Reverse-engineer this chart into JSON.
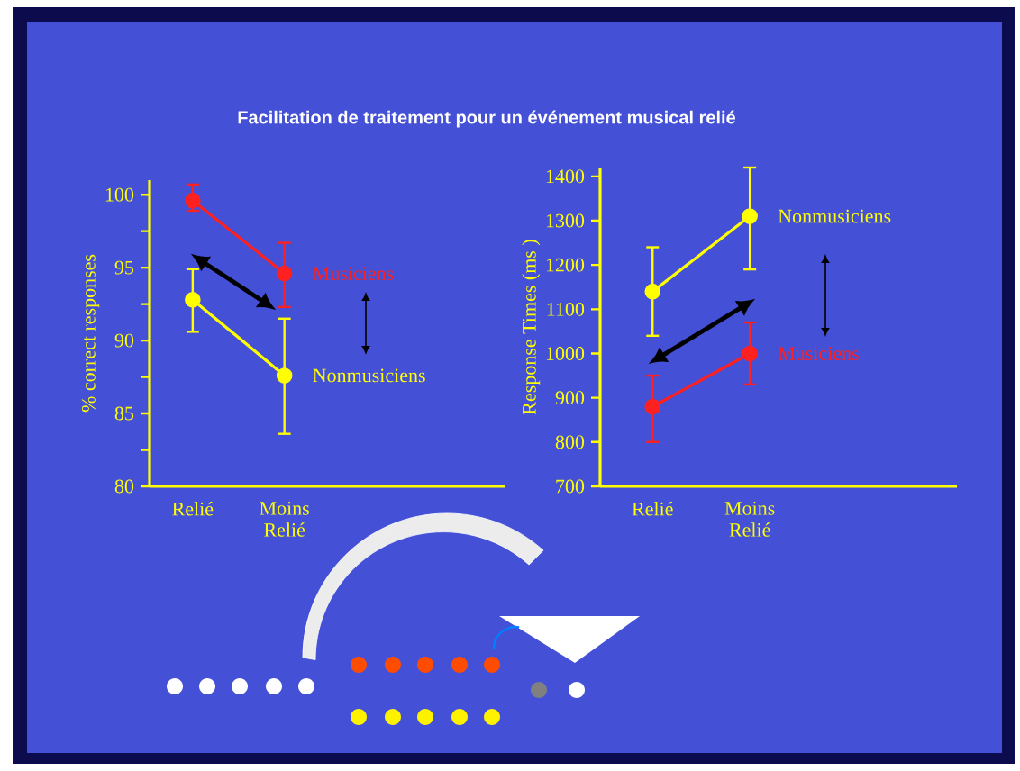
{
  "chart_data": [
    {
      "type": "line",
      "title": "Facilitation de traitement pour un événement musical relié",
      "ylabel": "% correct responses",
      "categories": [
        "Relié",
        "Moins Relié"
      ],
      "ylim": [
        80,
        101
      ],
      "yticks": [
        80,
        {
          "value": 82.5,
          "label": null
        },
        85,
        {
          "value": 87.5,
          "label": null
        },
        90,
        {
          "value": 92.5,
          "label": null
        },
        95,
        {
          "value": 97.5,
          "label": null
        },
        100
      ],
      "marker": "circle",
      "series": [
        {
          "name": "Musiciens",
          "color": "#ff2020",
          "values": [
            99.6,
            94.6
          ],
          "errors": [
            [
              98.9,
              100.7
            ],
            [
              92.3,
              96.7
            ]
          ]
        },
        {
          "name": "Nonmusiciens",
          "color": "#ffff00",
          "values": [
            92.8,
            87.6
          ],
          "errors": [
            [
              90.6,
              94.9
            ],
            [
              83.6,
              91.5
            ]
          ]
        }
      ]
    },
    {
      "type": "line",
      "ylabel": "Response Times (ms )",
      "categories": [
        "Relié",
        "Moins Relié"
      ],
      "ylim": [
        700,
        1420
      ],
      "yticks": [
        700,
        800,
        900,
        1000,
        1100,
        1200,
        1300,
        1400
      ],
      "marker": "circle",
      "series": [
        {
          "name": "Nonmusiciens",
          "color": "#ffff00",
          "values": [
            1140,
            1310
          ],
          "errors": [
            [
              1040,
              1240
            ],
            [
              1190,
              1420
            ]
          ]
        },
        {
          "name": "Musiciens",
          "color": "#ff2020",
          "values": [
            880,
            1000
          ],
          "errors": [
            [
              800,
              950
            ],
            [
              930,
              1070
            ]
          ]
        }
      ]
    }
  ]
}
